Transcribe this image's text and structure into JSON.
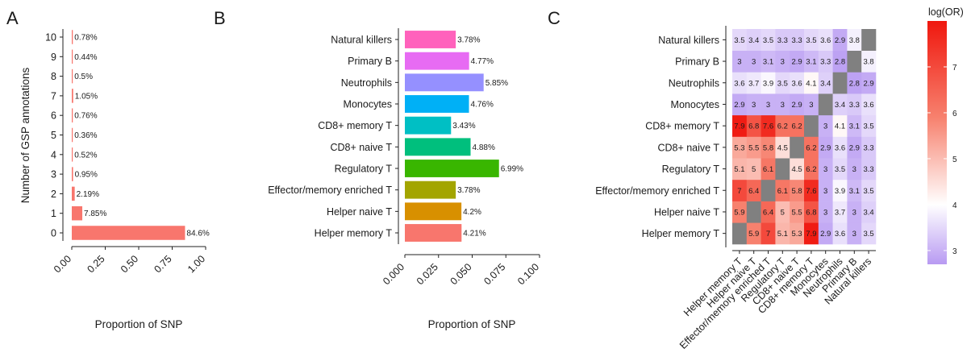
{
  "panels": {
    "a": "A",
    "b": "B",
    "c": "C"
  },
  "legend_title": "log(OR)",
  "chart_data": [
    {
      "type": "bar",
      "orientation": "horizontal",
      "categories": [
        "0",
        "1",
        "2",
        "3",
        "4",
        "5",
        "6",
        "7",
        "8",
        "9",
        "10"
      ],
      "values": [
        0.846,
        0.0785,
        0.0219,
        0.0095,
        0.0052,
        0.0036,
        0.0076,
        0.0105,
        0.005,
        0.0044,
        0.0078
      ],
      "data_labels": [
        "84.6%",
        "7.85%",
        "2.19%",
        "0.95%",
        "0.52%",
        "0.36%",
        "0.76%",
        "1.05%",
        "0.5%",
        "0.44%",
        "0.78%"
      ],
      "xticks": [
        "0.00",
        "0.25",
        "0.50",
        "0.75",
        "1.00"
      ],
      "xlim": [
        0,
        1
      ],
      "xlabel": "Proportion of SNP",
      "ylabel": "Number of GSP annotations",
      "color": "#F8766D"
    },
    {
      "type": "bar",
      "orientation": "horizontal",
      "categories": [
        "Helper memory T",
        "Helper naive T",
        "Effector/memory enriched T",
        "Regulatory T",
        "CD8+ naive T",
        "CD8+ memory T",
        "Monocytes",
        "Neutrophils",
        "Primary B",
        "Natural killers"
      ],
      "values": [
        0.0421,
        0.042,
        0.0378,
        0.0699,
        0.0488,
        0.0343,
        0.0476,
        0.0585,
        0.0477,
        0.0378
      ],
      "data_labels": [
        "4.21%",
        "4.2%",
        "3.78%",
        "6.99%",
        "4.88%",
        "3.43%",
        "4.76%",
        "5.85%",
        "4.77%",
        "3.78%"
      ],
      "colors": [
        "#F8766D",
        "#D89000",
        "#A3A500",
        "#39B600",
        "#00BF7D",
        "#00BFC4",
        "#00B0F6",
        "#9590FF",
        "#E76BF3",
        "#FF62BC"
      ],
      "xticks": [
        "0.000",
        "0.025",
        "0.050",
        "0.075",
        "0.100"
      ],
      "xlim": [
        0,
        0.1
      ],
      "xlabel": "Proportion of SNP"
    },
    {
      "type": "heatmap",
      "rows": [
        "Helper memory T",
        "Helper naive T",
        "Effector/memory enriched T",
        "Regulatory T",
        "CD8+ naive T",
        "CD8+ memory T",
        "Monocytes",
        "Neutrophils",
        "Primary B",
        "Natural killers"
      ],
      "cols": [
        "Helper memory T",
        "Helper naive T",
        "Effector/memory enriched T",
        "Regulatory T",
        "CD8+ naive T",
        "CD8+ memory T",
        "Monocytes",
        "Neutrophils",
        "Primary B",
        "Natural killers"
      ],
      "values": [
        [
          null,
          "5.9",
          "7",
          "5.1",
          "5.3",
          "7.9",
          "2.9",
          "3.6",
          "3",
          "3.5"
        ],
        [
          "5.9",
          null,
          "6.4",
          "5",
          "5.5",
          "6.8",
          "3",
          "3.7",
          "3",
          "3.4"
        ],
        [
          "7",
          "6.4",
          null,
          "6.1",
          "5.8",
          "7.6",
          "3",
          "3.9",
          "3.1",
          "3.5"
        ],
        [
          "5.1",
          "5",
          "6.1",
          null,
          "4.5",
          "6.2",
          "3",
          "3.5",
          "3",
          "3.3"
        ],
        [
          "5.3",
          "5.5",
          "5.8",
          "4.5",
          null,
          "6.2",
          "2.9",
          "3.6",
          "2.9",
          "3.3"
        ],
        [
          "7.9",
          "6.8",
          "7.6",
          "6.2",
          "6.2",
          null,
          "3",
          "4.1",
          "3.1",
          "3.5"
        ],
        [
          "2.9",
          "3",
          "3",
          "3",
          "2.9",
          "3",
          null,
          "3.4",
          "3.3",
          "3.6"
        ],
        [
          "3.6",
          "3.7",
          "3.9",
          "3.5",
          "3.6",
          "4.1",
          "3.4",
          null,
          "2.8",
          "2.9"
        ],
        [
          "3",
          "3",
          "3.1",
          "3",
          "2.9",
          "3.1",
          "3.3",
          "2.8",
          null,
          "3.8"
        ],
        [
          "3.5",
          "3.4",
          "3.5",
          "3.3",
          "3.3",
          "3.5",
          "3.6",
          "2.9",
          "3.8",
          null
        ]
      ],
      "colorbar": {
        "ticks": [
          "3",
          "4",
          "5",
          "6",
          "7"
        ],
        "range": [
          2.7,
          8.0
        ]
      },
      "colors": {
        "low": "#B89AF2",
        "mid": "#FFFFFF",
        "high": "#F0170E",
        "na": "#808080"
      }
    }
  ]
}
